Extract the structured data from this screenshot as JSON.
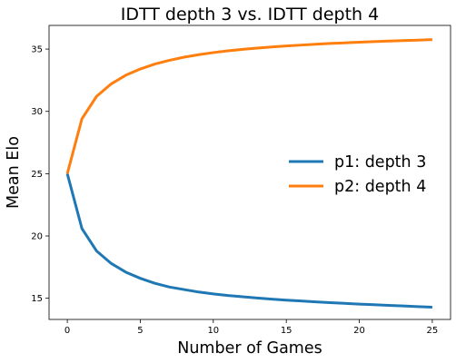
{
  "chart_data": {
    "type": "line",
    "title": "IDTT depth 3 vs. IDTT depth 4",
    "xlabel": "Number of Games",
    "ylabel": "Mean Elo",
    "xlim": [
      -1.25,
      26.25
    ],
    "ylim": [
      13.3,
      36.9
    ],
    "xticks": [
      0,
      5,
      10,
      15,
      20,
      25
    ],
    "yticks": [
      15,
      20,
      25,
      30,
      35
    ],
    "grid": false,
    "legend_position": "center-right",
    "x": [
      0,
      1,
      2,
      3,
      4,
      5,
      6,
      7,
      8,
      9,
      10,
      11,
      12,
      13,
      14,
      15,
      16,
      17,
      18,
      19,
      20,
      21,
      22,
      23,
      24,
      25
    ],
    "series": [
      {
        "name": "p1: depth 3",
        "color": "#1f77b4",
        "values": [
          25.0,
          20.6,
          18.8,
          17.8,
          17.1,
          16.6,
          16.2,
          15.9,
          15.7,
          15.5,
          15.35,
          15.22,
          15.12,
          15.02,
          14.93,
          14.85,
          14.78,
          14.71,
          14.65,
          14.59,
          14.53,
          14.48,
          14.43,
          14.38,
          14.33,
          14.28
        ]
      },
      {
        "name": "p2: depth 4",
        "color": "#ff7f0e",
        "values": [
          25.0,
          29.4,
          31.2,
          32.2,
          32.9,
          33.4,
          33.8,
          34.1,
          34.35,
          34.55,
          34.72,
          34.86,
          34.98,
          35.08,
          35.17,
          35.25,
          35.32,
          35.39,
          35.45,
          35.5,
          35.55,
          35.6,
          35.64,
          35.68,
          35.72,
          35.76
        ]
      }
    ]
  }
}
